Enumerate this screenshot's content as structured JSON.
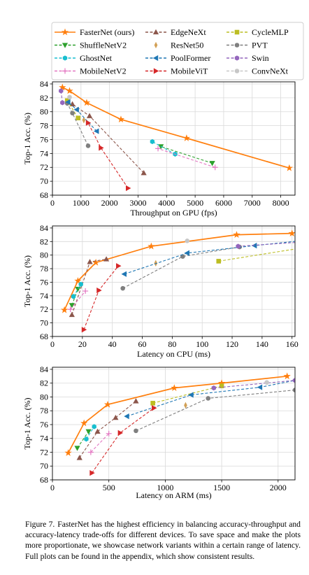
{
  "legend": {
    "items": [
      {
        "label": "FasterNet (ours)",
        "color": "#ff7f0e",
        "marker": "star",
        "dash": "solid"
      },
      {
        "label": "EdgeNeXt",
        "color": "#8c564b",
        "marker": "triangle-up",
        "dash": "dashed"
      },
      {
        "label": "CycleMLP",
        "color": "#bcbd22",
        "marker": "square",
        "dash": "dashed"
      },
      {
        "label": "ShuffleNetV2",
        "color": "#2ca02c",
        "marker": "triangle-down",
        "dash": "dashed"
      },
      {
        "label": "ResNet50",
        "color": "#d2a055",
        "marker": "thin-diamond",
        "dash": "none"
      },
      {
        "label": "PVT",
        "color": "#7f7f7f",
        "marker": "circle",
        "dash": "dashed"
      },
      {
        "label": "GhostNet",
        "color": "#17becf",
        "marker": "hexagon",
        "dash": "dashed"
      },
      {
        "label": "PoolFormer",
        "color": "#1f77b4",
        "marker": "triangle-left",
        "dash": "dashed"
      },
      {
        "label": "Swin",
        "color": "#9467bd",
        "marker": "hexagon",
        "dash": "dashed"
      },
      {
        "label": "MobileNetV2",
        "color": "#e377c2",
        "marker": "plus",
        "dash": "dashed"
      },
      {
        "label": "MobileViT",
        "color": "#d62728",
        "marker": "triangle-right",
        "dash": "dashed"
      },
      {
        "label": "ConvNeXt",
        "color": "#c7c7c7",
        "marker": "circle",
        "dash": "dashed"
      }
    ]
  },
  "chart_data": [
    {
      "type": "line",
      "xlabel": "Throughput on GPU (fps)",
      "ylabel": "Top-1 Acc. (%)",
      "xlim": [
        0,
        8500
      ],
      "ylim": [
        68,
        84.3
      ],
      "xticks": [
        0,
        1000,
        2000,
        3000,
        4000,
        5000,
        6000,
        7000,
        8000
      ],
      "yticks": [
        68,
        70,
        72,
        74,
        76,
        78,
        80,
        82,
        84
      ],
      "grid": true,
      "series": [
        {
          "name": "FasterNet (ours)",
          "points": [
            [
              8300,
              71.9
            ],
            [
              4700,
              76.2
            ],
            [
              2400,
              78.9
            ],
            [
              1200,
              81.3
            ],
            [
              600,
              83.0
            ],
            [
              350,
              83.5
            ]
          ]
        },
        {
          "name": "EdgeNeXt",
          "points": [
            [
              3200,
              71.2
            ],
            [
              1300,
              79.4
            ],
            [
              700,
              81.1
            ]
          ]
        },
        {
          "name": "CycleMLP",
          "points": [
            [
              900,
              79.1
            ],
            [
              520,
              81.6
            ]
          ]
        },
        {
          "name": "ShuffleNetV2",
          "points": [
            [
              5600,
              72.6
            ],
            [
              3800,
              75.0
            ]
          ]
        },
        {
          "name": "ResNet50",
          "points": [
            [
              1100,
              78.8
            ]
          ]
        },
        {
          "name": "PVT",
          "points": [
            [
              1250,
              75.1
            ],
            [
              700,
              79.8
            ],
            [
              520,
              81.2
            ]
          ]
        },
        {
          "name": "GhostNet",
          "points": [
            [
              4300,
              73.9
            ],
            [
              3500,
              75.7
            ]
          ]
        },
        {
          "name": "PoolFormer",
          "points": [
            [
              1550,
              77.2
            ],
            [
              850,
              80.3
            ],
            [
              550,
              81.4
            ]
          ]
        },
        {
          "name": "Swin",
          "points": [
            [
              350,
              81.3
            ],
            [
              300,
              83.0
            ]
          ]
        },
        {
          "name": "MobileNetV2",
          "points": [
            [
              5700,
              72.0
            ],
            [
              3700,
              74.7
            ]
          ]
        },
        {
          "name": "MobileViT",
          "points": [
            [
              2650,
              69.0
            ],
            [
              1700,
              74.8
            ],
            [
              1250,
              78.4
            ]
          ]
        },
        {
          "name": "ConvNeXt",
          "points": [
            [
              600,
              82.1
            ]
          ]
        }
      ]
    },
    {
      "type": "line",
      "xlabel": "Latency on CPU (ms)",
      "ylabel": "Top-1 Acc. (%)",
      "xlim": [
        0,
        162
      ],
      "ylim": [
        68,
        84.3
      ],
      "xticks": [
        0,
        20,
        40,
        60,
        80,
        100,
        120,
        140,
        160
      ],
      "yticks": [
        68,
        70,
        72,
        74,
        76,
        78,
        80,
        82,
        84
      ],
      "grid": true,
      "series": [
        {
          "name": "FasterNet (ours)",
          "points": [
            [
              8,
              71.9
            ],
            [
              17,
              76.2
            ],
            [
              29,
              78.9
            ],
            [
              66,
              81.3
            ],
            [
              123,
              83.0
            ],
            [
              160,
              83.2
            ]
          ]
        },
        {
          "name": "EdgeNeXt",
          "points": [
            [
              13,
              71.2
            ],
            [
              25,
              79.0
            ],
            [
              36,
              79.4
            ]
          ]
        },
        {
          "name": "CycleMLP",
          "points": [
            [
              111,
              79.1
            ],
            [
              165,
              81.0
            ]
          ]
        },
        {
          "name": "ShuffleNetV2",
          "points": [
            [
              13,
              72.6
            ],
            [
              17,
              75.0
            ]
          ]
        },
        {
          "name": "ResNet50",
          "points": [
            [
              69,
              78.8
            ]
          ]
        },
        {
          "name": "PVT",
          "points": [
            [
              47,
              75.1
            ],
            [
              87,
              79.8
            ],
            [
              125,
              81.2
            ]
          ]
        },
        {
          "name": "GhostNet",
          "points": [
            [
              14,
              73.9
            ],
            [
              19,
              75.7
            ]
          ]
        },
        {
          "name": "PoolFormer",
          "points": [
            [
              48,
              77.2
            ],
            [
              90,
              80.3
            ],
            [
              135,
              81.4
            ],
            [
              165,
              82.1
            ]
          ]
        },
        {
          "name": "Swin",
          "points": [
            [
              124,
              81.3
            ],
            [
              165,
              81.9
            ]
          ]
        },
        {
          "name": "MobileNetV2",
          "points": [
            [
              12,
              72.0
            ],
            [
              22,
              74.7
            ]
          ]
        },
        {
          "name": "MobileViT",
          "points": [
            [
              21,
              69.0
            ],
            [
              31,
              74.8
            ],
            [
              44,
              78.4
            ]
          ]
        },
        {
          "name": "ConvNeXt",
          "points": [
            [
              90,
              82.1
            ]
          ]
        }
      ]
    },
    {
      "type": "line",
      "xlabel": "Latency on ARM (ms)",
      "ylabel": "Top-1 Acc. (%)",
      "xlim": [
        0,
        2150
      ],
      "ylim": [
        68,
        84.3
      ],
      "xticks": [
        0,
        500,
        1000,
        1500,
        2000
      ],
      "yticks": [
        68,
        70,
        72,
        74,
        76,
        78,
        80,
        82,
        84
      ],
      "grid": true,
      "series": [
        {
          "name": "FasterNet (ours)",
          "points": [
            [
              140,
              71.9
            ],
            [
              280,
              76.2
            ],
            [
              490,
              78.9
            ],
            [
              1080,
              81.3
            ],
            [
              1500,
              82.0
            ],
            [
              2080,
              83.0
            ]
          ]
        },
        {
          "name": "EdgeNeXt",
          "points": [
            [
              240,
              71.2
            ],
            [
              400,
              75.0
            ],
            [
              560,
              77.0
            ],
            [
              740,
              79.4
            ]
          ]
        },
        {
          "name": "CycleMLP",
          "points": [
            [
              890,
              79.1
            ],
            [
              1500,
              81.6
            ]
          ]
        },
        {
          "name": "ShuffleNetV2",
          "points": [
            [
              220,
              72.6
            ],
            [
              320,
              75.0
            ]
          ]
        },
        {
          "name": "ResNet50",
          "points": [
            [
              1180,
              78.8
            ]
          ]
        },
        {
          "name": "PVT",
          "points": [
            [
              740,
              75.1
            ],
            [
              1380,
              79.8
            ],
            [
              2150,
              81.0
            ]
          ]
        },
        {
          "name": "GhostNet",
          "points": [
            [
              300,
              73.9
            ],
            [
              370,
              75.7
            ]
          ]
        },
        {
          "name": "PoolFormer",
          "points": [
            [
              660,
              77.2
            ],
            [
              1230,
              80.3
            ],
            [
              1840,
              81.4
            ],
            [
              2150,
              82.4
            ]
          ]
        },
        {
          "name": "Swin",
          "points": [
            [
              1430,
              81.3
            ],
            [
              2150,
              82.4
            ]
          ]
        },
        {
          "name": "MobileNetV2",
          "points": [
            [
              340,
              72.0
            ],
            [
              500,
              74.7
            ]
          ]
        },
        {
          "name": "MobileViT",
          "points": [
            [
              350,
              69.0
            ],
            [
              600,
              74.8
            ],
            [
              900,
              78.4
            ]
          ]
        },
        {
          "name": "ConvNeXt",
          "points": [
            [
              1900,
              82.1
            ]
          ]
        }
      ]
    }
  ],
  "caption": {
    "label": "Figure 7.",
    "text": "FasterNet has the highest efficiency in balancing accuracy-throughput and accuracy-latency trade-offs for different devices. To save space and make the plots more proportionate, we showcase network variants within a certain range of latency. Full plots can be found in the appendix, which show consistent results."
  }
}
